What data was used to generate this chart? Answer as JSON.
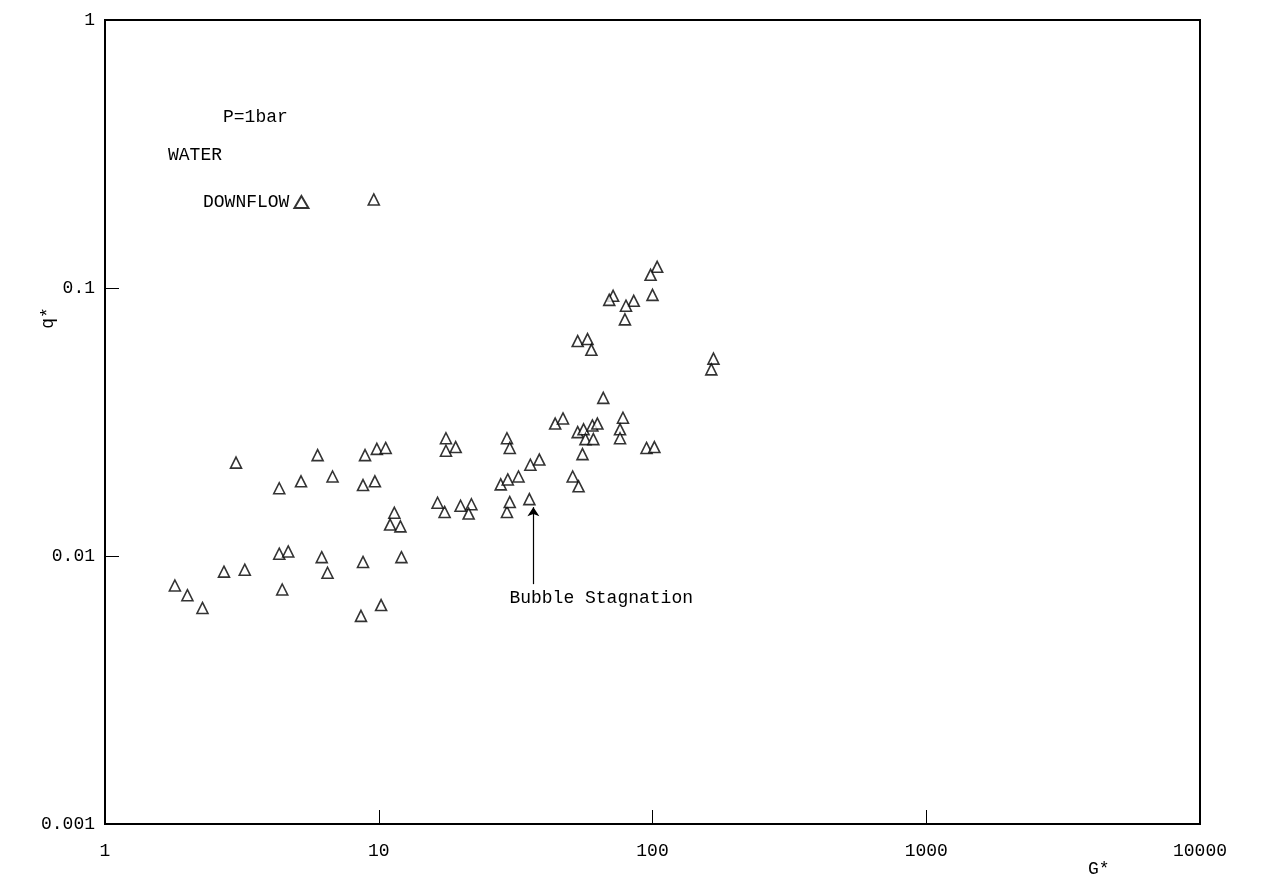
{
  "chart_data": {
    "type": "scatter",
    "xlabel": "G*",
    "ylabel": "q*",
    "log": "xy",
    "xlim": [
      1,
      10000
    ],
    "xticks": [
      1,
      10,
      100,
      1000,
      10000
    ],
    "ylim": [
      0.001,
      1
    ],
    "yticks": [
      0.001,
      0.01,
      0.1,
      1
    ],
    "grid": false,
    "legend": "top left",
    "marker": "triangle",
    "annotations": [
      "P=1bar",
      "WATER",
      {
        "text": "Bubble Stagnation",
        "x": 35.5,
        "y": 0.0163
      }
    ],
    "series": [
      {
        "name": "DOWNFLOW",
        "color": "#000000",
        "x": [
          1.8,
          2.0,
          2.27,
          2.72,
          3.24,
          3.01,
          4.33,
          4.33,
          4.67,
          4.44,
          5.2,
          5.98,
          6.19,
          6.5,
          6.78,
          8.76,
          8.91,
          8.76,
          8.61,
          9.68,
          9.84,
          10.6,
          10.2,
          9.59,
          11.4,
          11.0,
          12.0,
          12.1,
          16.4,
          17.4,
          17.6,
          17.6,
          19.1,
          19.9,
          21.8,
          21.3,
          27.9,
          29.6,
          29.4,
          30.1,
          29.4,
          30.1,
          32.4,
          35.8,
          38.6,
          35.5,
          44.1,
          47.1,
          51.1,
          53.7,
          53.3,
          56.0,
          60.3,
          62.9,
          56.9,
          60.8,
          55.5,
          66.1,
          78.0,
          76.1,
          76.1,
          95.1,
          101.6,
          104,
          98.4,
          100,
          71.8,
          69.5,
          85.4,
          80.0,
          79.3,
          53.3,
          57.9,
          59.8,
          167,
          164
        ],
        "values": [
          0.00776,
          0.00714,
          0.0064,
          0.00874,
          0.00889,
          0.0223,
          0.0179,
          0.0102,
          0.0104,
          0.0075,
          0.019,
          0.0238,
          0.0099,
          0.00866,
          0.0198,
          0.0184,
          0.0238,
          0.0095,
          0.00598,
          0.019,
          0.0251,
          0.0253,
          0.00656,
          0.214,
          0.0145,
          0.0131,
          0.0129,
          0.0099,
          0.0158,
          0.0146,
          0.0275,
          0.0247,
          0.0255,
          0.0154,
          0.0156,
          0.0144,
          0.0185,
          0.0193,
          0.0275,
          0.0253,
          0.0146,
          0.0159,
          0.0198,
          0.0219,
          0.0229,
          0.0163,
          0.0312,
          0.0326,
          0.0198,
          0.0182,
          0.029,
          0.0297,
          0.0307,
          0.0312,
          0.0273,
          0.0273,
          0.024,
          0.0389,
          0.0328,
          0.0297,
          0.0275,
          0.0253,
          0.0255,
          0.12,
          0.112,
          0.0943,
          0.0935,
          0.0903,
          0.0896,
          0.0859,
          0.0764,
          0.0634,
          0.0645,
          0.0588,
          0.0545,
          0.0497
        ]
      }
    ]
  }
}
